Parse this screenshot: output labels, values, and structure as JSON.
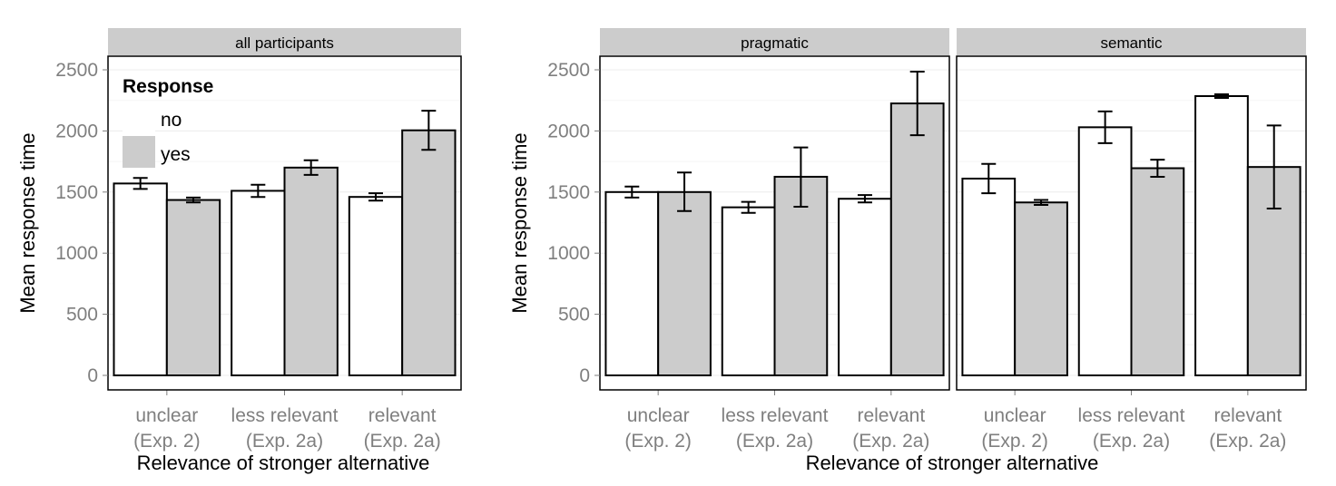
{
  "chart_data": [
    {
      "type": "bar",
      "panels": [
        {
          "strip": "all participants",
          "categories": [
            [
              "unclear",
              "(Exp. 2)"
            ],
            [
              "less relevant",
              "(Exp. 2a)"
            ],
            [
              "relevant",
              "(Exp. 2a)"
            ]
          ],
          "series": [
            {
              "name": "no",
              "values": [
                1570,
                1510,
                1460
              ],
              "error": [
                [
                  1525,
                  1615
                ],
                [
                  1460,
                  1560
                ],
                [
                  1430,
                  1490
                ]
              ]
            },
            {
              "name": "yes",
              "values": [
                1435,
                1700,
                2005
              ],
              "error": [
                [
                  1415,
                  1455
                ],
                [
                  1640,
                  1760
                ],
                [
                  1845,
                  2165
                ]
              ]
            }
          ]
        }
      ],
      "xlabel": "Relevance of stronger alternative",
      "ylabel": "Mean response time",
      "ylim": [
        0,
        2500
      ],
      "yticks": [
        0,
        500,
        1000,
        1500,
        2000,
        2500
      ],
      "legend": {
        "title": "Response",
        "entries": [
          "no",
          "yes"
        ],
        "placement": "top-left"
      },
      "colors": {
        "no": "#ffffff",
        "yes": "#cccccc"
      },
      "grid": true
    },
    {
      "type": "bar",
      "panels": [
        {
          "strip": "pragmatic",
          "categories": [
            [
              "unclear",
              "(Exp. 2)"
            ],
            [
              "less relevant",
              "(Exp. 2a)"
            ],
            [
              "relevant",
              "(Exp. 2a)"
            ]
          ],
          "series": [
            {
              "name": "no",
              "values": [
                1500,
                1375,
                1445
              ],
              "error": [
                [
                  1455,
                  1545
                ],
                [
                  1330,
                  1420
                ],
                [
                  1415,
                  1475
                ]
              ]
            },
            {
              "name": "yes",
              "values": [
                1500,
                1625,
                2225
              ],
              "error": [
                [
                  1345,
                  1660
                ],
                [
                  1380,
                  1865
                ],
                [
                  1965,
                  2485
                ]
              ]
            }
          ]
        },
        {
          "strip": "semantic",
          "categories": [
            [
              "unclear",
              "(Exp. 2)"
            ],
            [
              "less relevant",
              "(Exp. 2a)"
            ],
            [
              "relevant",
              "(Exp. 2a)"
            ]
          ],
          "series": [
            {
              "name": "no",
              "values": [
                1610,
                2030,
                2285
              ],
              "error": [
                [
                  1490,
                  1730
                ],
                [
                  1900,
                  2160
                ],
                [
                  2270,
                  2300
                ]
              ]
            },
            {
              "name": "yes",
              "values": [
                1415,
                1695,
                1705
              ],
              "error": [
                [
                  1395,
                  1435
                ],
                [
                  1625,
                  1765
                ],
                [
                  1365,
                  2045
                ]
              ]
            }
          ]
        }
      ],
      "xlabel": "Relevance of stronger alternative",
      "ylabel": "Mean response time",
      "ylim": [
        0,
        2500
      ],
      "yticks": [
        0,
        500,
        1000,
        1500,
        2000,
        2500
      ],
      "colors": {
        "no": "#ffffff",
        "yes": "#cccccc"
      },
      "grid": true
    }
  ]
}
